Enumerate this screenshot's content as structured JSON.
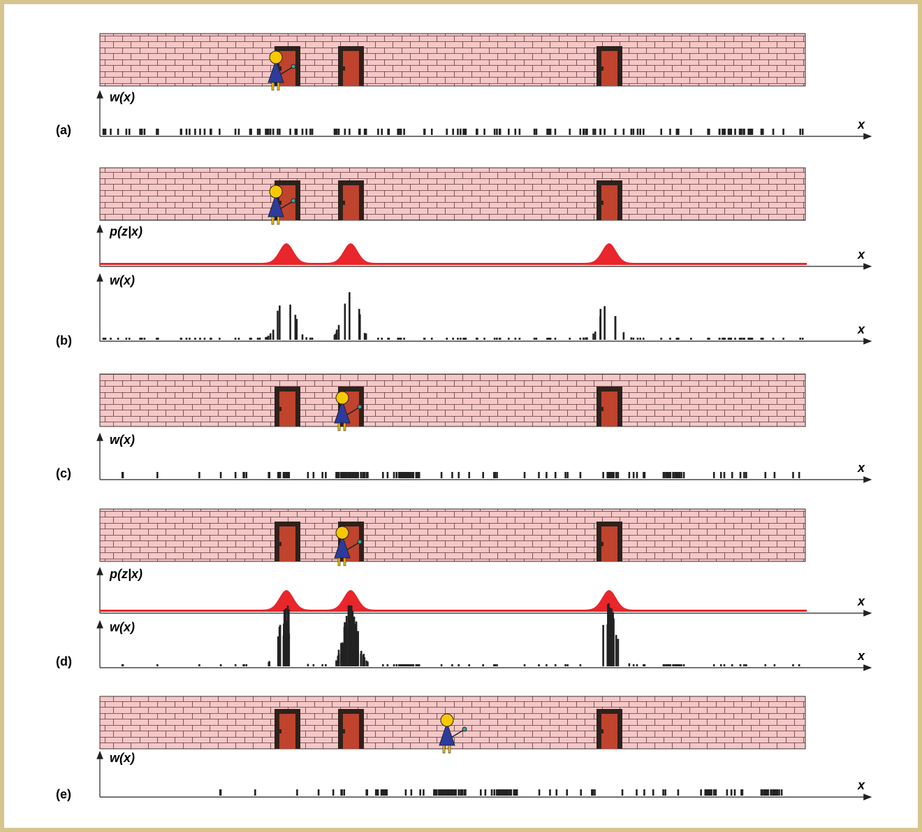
{
  "panels": [
    {
      "label": "(a)",
      "axes": [
        {
          "y_label": "w(x)",
          "x_label": "x"
        }
      ]
    },
    {
      "label": "(b)",
      "axes": [
        {
          "y_label": "p(z|x)",
          "x_label": "x"
        },
        {
          "y_label": "w(x)",
          "x_label": "x"
        }
      ]
    },
    {
      "label": "(c)",
      "axes": [
        {
          "y_label": "w(x)",
          "x_label": "x"
        }
      ]
    },
    {
      "label": "(d)",
      "axes": [
        {
          "y_label": "p(z|x)",
          "x_label": "x"
        },
        {
          "y_label": "w(x)",
          "x_label": "x"
        }
      ]
    },
    {
      "label": "(e)",
      "axes": [
        {
          "y_label": "w(x)",
          "x_label": "x"
        }
      ]
    }
  ]
}
